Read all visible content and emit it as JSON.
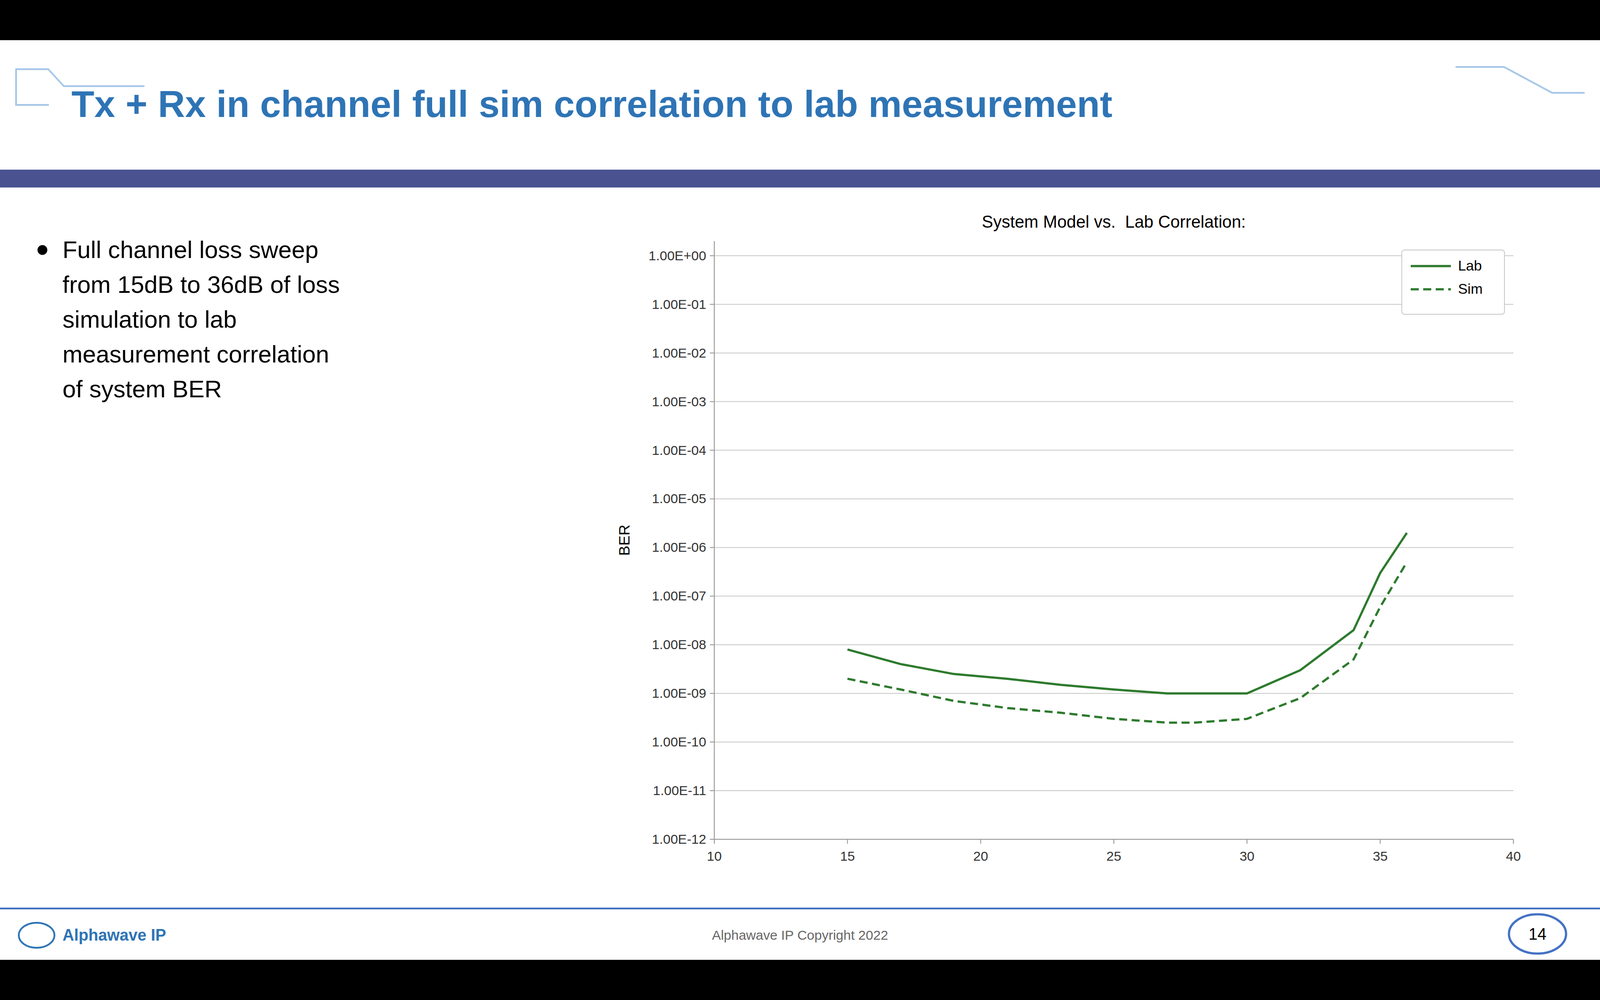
{
  "title": "Tx + Rx in channel full sim correlation to lab measurement",
  "bullet_text_lines": [
    "Full channel loss sweep",
    "from 15dB to 36dB of loss",
    "simulation to lab",
    "measurement correlation",
    "of system BER"
  ],
  "footer_text": "Alphawave IP Copyright 2022",
  "logo_text": "Alphawave IP",
  "slide_number": "14",
  "chart_data": {
    "type": "line",
    "title": "System Model vs.  Lab Correlation:",
    "y_label": "BER",
    "log": "y",
    "grid": "y",
    "legend": "upper right",
    "xlim": [
      10,
      40
    ],
    "xticks": [
      10,
      15,
      20,
      25,
      30,
      35,
      40
    ],
    "ylim": [
      1e-12,
      2
    ],
    "yticks": [
      {
        "value": 1,
        "label": "1.00E+00"
      },
      {
        "value": 0.1,
        "label": "1.00E-01"
      },
      {
        "value": 0.01,
        "label": "1.00E-02"
      },
      {
        "value": 0.001,
        "label": "1.00E-03"
      },
      {
        "value": 0.0001,
        "label": "1.00E-04"
      },
      {
        "value": 1e-05,
        "label": "1.00E-05"
      },
      {
        "value": 1e-06,
        "label": "1.00E-06"
      },
      {
        "value": 1e-07,
        "label": "1.00E-07"
      },
      {
        "value": 1e-08,
        "label": "1.00E-08"
      },
      {
        "value": 1e-09,
        "label": "1.00E-09"
      },
      {
        "value": 1e-10,
        "label": "1.00E-10"
      },
      {
        "value": 1e-11,
        "label": "1.00E-11"
      },
      {
        "value": 1e-12,
        "label": "1.00E-12"
      }
    ],
    "x": [
      15,
      17,
      19,
      21,
      23,
      25,
      27,
      28,
      30,
      32,
      34,
      35,
      36
    ],
    "series": [
      {
        "name": "Lab",
        "color": "#2D7A2D",
        "line_style": "solid",
        "values": [
          8e-09,
          4e-09,
          2.5e-09,
          2e-09,
          1.5e-09,
          1.2e-09,
          1e-09,
          1e-09,
          1e-09,
          3e-09,
          2e-08,
          3e-07,
          2e-06
        ]
      },
      {
        "name": "Sim",
        "color": "#2D7A2D",
        "line_style": "dashed",
        "values": [
          2e-09,
          1.2e-09,
          7e-10,
          5e-10,
          4e-10,
          3e-10,
          2.5e-10,
          2.5e-10,
          3e-10,
          8e-10,
          5e-09,
          6e-08,
          5e-07
        ]
      }
    ]
  }
}
